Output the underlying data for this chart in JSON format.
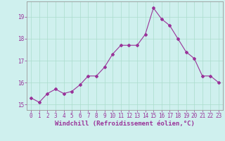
{
  "x": [
    0,
    1,
    2,
    3,
    4,
    5,
    6,
    7,
    8,
    9,
    10,
    11,
    12,
    13,
    14,
    15,
    16,
    17,
    18,
    19,
    20,
    21,
    22,
    23
  ],
  "y": [
    15.3,
    15.1,
    15.5,
    15.7,
    15.5,
    15.6,
    15.9,
    16.3,
    16.3,
    16.7,
    17.3,
    17.7,
    17.7,
    17.7,
    18.2,
    19.4,
    18.9,
    18.6,
    18.0,
    17.4,
    17.1,
    16.3,
    16.3,
    16.0
  ],
  "line_color": "#993399",
  "marker": "D",
  "marker_size": 2.0,
  "bg_color": "#cff0ee",
  "grid_color": "#aaddcc",
  "xlabel": "Windchill (Refroidissement éolien,°C)",
  "xlabel_fontsize": 6.5,
  "tick_fontsize": 5.5,
  "ylim": [
    14.75,
    19.7
  ],
  "yticks": [
    15,
    16,
    17,
    18,
    19
  ],
  "xticks": [
    0,
    1,
    2,
    3,
    4,
    5,
    6,
    7,
    8,
    9,
    10,
    11,
    12,
    13,
    14,
    15,
    16,
    17,
    18,
    19,
    20,
    21,
    22,
    23
  ],
  "line_width": 0.8
}
